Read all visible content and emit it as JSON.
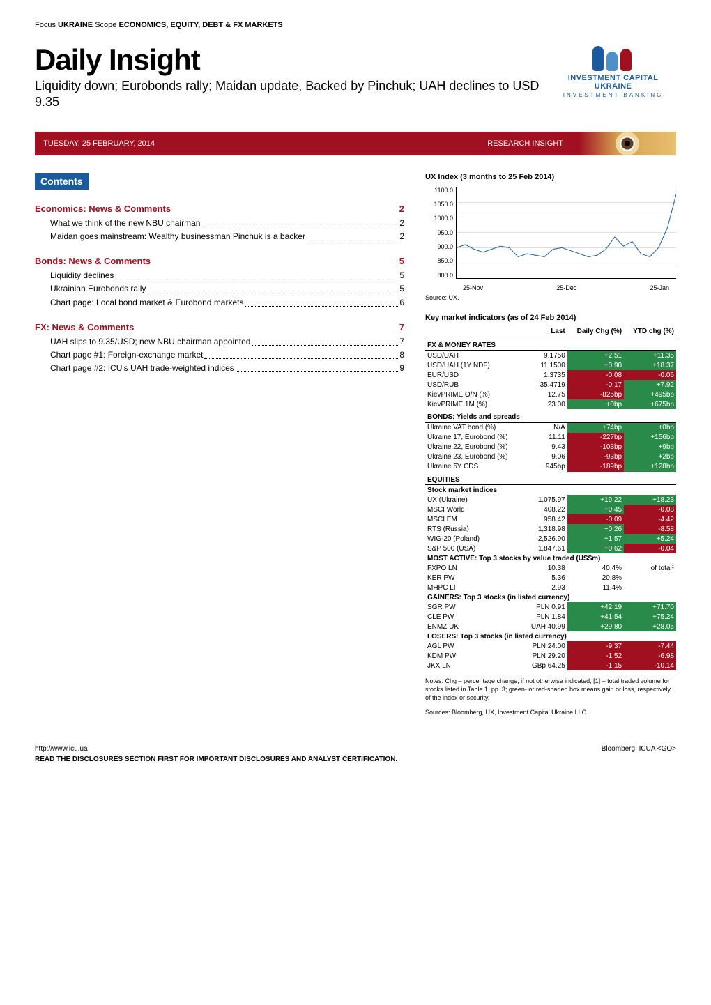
{
  "header_tag": {
    "prefix": "Focus ",
    "b1": "UKRAINE",
    "mid": "   Scope ",
    "b2": "ECONOMICS, EQUITY, DEBT & FX MARKETS"
  },
  "title": "Daily Insight",
  "subtitle": "Liquidity down; Eurobonds rally; Maidan update, Backed by Pinchuk; UAH declines to USD 9.35",
  "logo": {
    "name": "INVESTMENT CAPITAL UKRAINE",
    "sub": "INVESTMENT BANKING"
  },
  "logo_colors": [
    "#1a5a9e",
    "#5090c8",
    "#a01020"
  ],
  "date": "TUESDAY, 25 FEBRUARY, 2014",
  "research": "RESEARCH INSIGHT",
  "contents_label": "Contents",
  "toc": [
    {
      "title": "Economics: News & Comments",
      "page": "2",
      "items": [
        {
          "label": "What we think of the new NBU chairman",
          "pg": "2"
        },
        {
          "label": "Maidan goes mainstream: Wealthy businessman Pinchuk is a backer",
          "pg": "2"
        }
      ]
    },
    {
      "title": "Bonds: News & Comments",
      "page": "5",
      "items": [
        {
          "label": "Liquidity declines",
          "pg": "5"
        },
        {
          "label": "Ukrainian Eurobonds rally",
          "pg": "5"
        },
        {
          "label": "Chart page: Local bond market & Eurobond markets",
          "pg": "6"
        }
      ]
    },
    {
      "title": "FX: News & Comments",
      "page": "7",
      "items": [
        {
          "label": "UAH slips to 9.35/USD; new NBU chairman appointed",
          "pg": "7"
        },
        {
          "label": "Chart page #1: Foreign-exchange market",
          "pg": "8"
        },
        {
          "label": "Chart page #2: ICU's UAH trade-weighted indices",
          "pg": "9"
        }
      ]
    }
  ],
  "chart": {
    "title": "UX Index (3 months to 25 Feb 2014)",
    "ylim": [
      800,
      1100
    ],
    "ytick_step": 50,
    "yticks": [
      "1100.0",
      "1050.0",
      "1000.0",
      "950.0",
      "900.0",
      "850.0",
      "800.0"
    ],
    "xticks": [
      "25-Nov",
      "25-Dec",
      "25-Jan"
    ],
    "line_color": "#1a5a9e",
    "grid_color": "#dddddd",
    "source": "Source: UX.",
    "points": [
      [
        0,
        900
      ],
      [
        4,
        910
      ],
      [
        8,
        895
      ],
      [
        12,
        885
      ],
      [
        16,
        895
      ],
      [
        20,
        905
      ],
      [
        24,
        900
      ],
      [
        28,
        870
      ],
      [
        32,
        880
      ],
      [
        36,
        875
      ],
      [
        40,
        870
      ],
      [
        44,
        895
      ],
      [
        48,
        900
      ],
      [
        52,
        890
      ],
      [
        56,
        880
      ],
      [
        60,
        870
      ],
      [
        64,
        875
      ],
      [
        68,
        895
      ],
      [
        72,
        935
      ],
      [
        76,
        905
      ],
      [
        80,
        920
      ],
      [
        84,
        880
      ],
      [
        88,
        870
      ],
      [
        92,
        900
      ],
      [
        96,
        965
      ],
      [
        100,
        1075
      ]
    ]
  },
  "kmi_title": "Key market indicators (as of 24 Feb 2014)",
  "kmi_headers": [
    "",
    "Last",
    "Daily Chg (%)",
    "YTD chg (%)"
  ],
  "kmi_sections": [
    {
      "head": "FX & MONEY RATES",
      "rows": [
        {
          "n": "USD/UAH",
          "last": "9.1750",
          "d": "+2.51",
          "dc": "pos",
          "y": "+11.35",
          "yc": "pos"
        },
        {
          "n": "USD/UAH (1Y NDF)",
          "last": "11.1500",
          "d": "+0.90",
          "dc": "pos",
          "y": "+18.37",
          "yc": "pos"
        },
        {
          "n": "EUR/USD",
          "last": "1.3735",
          "d": "-0.08",
          "dc": "neg",
          "y": "-0.06",
          "yc": "neg"
        },
        {
          "n": "USD/RUB",
          "last": "35.4719",
          "d": "-0.17",
          "dc": "neg",
          "y": "+7.92",
          "yc": "pos"
        },
        {
          "n": "KievPRIME O/N (%)",
          "last": "12.75",
          "d": "-825bp",
          "dc": "neg",
          "y": "+495bp",
          "yc": "pos"
        },
        {
          "n": "KievPRIME 1M (%)",
          "last": "23.00",
          "d": "+0bp",
          "dc": "pos",
          "y": "+675bp",
          "yc": "pos"
        }
      ]
    },
    {
      "head": "BONDS: Yields and spreads",
      "rows": [
        {
          "n": "Ukraine VAT bond (%)",
          "last": "N/A",
          "d": "+74bp",
          "dc": "pos",
          "y": "+0bp",
          "yc": "pos"
        },
        {
          "n": "Ukraine 17, Eurobond (%)",
          "last": "11.11",
          "d": "-227bp",
          "dc": "neg",
          "y": "+156bp",
          "yc": "pos"
        },
        {
          "n": "Ukraine 22, Eurobond (%)",
          "last": "9.43",
          "d": "-103bp",
          "dc": "neg",
          "y": "+9bp",
          "yc": "pos"
        },
        {
          "n": "Ukraine 23, Eurobond (%)",
          "last": "9.06",
          "d": "-93bp",
          "dc": "neg",
          "y": "+2bp",
          "yc": "pos"
        },
        {
          "n": "Ukraine 5Y CDS",
          "last": "945bp",
          "d": "-189bp",
          "dc": "neg",
          "y": "+128bp",
          "yc": "pos"
        }
      ]
    },
    {
      "head": "EQUITIES",
      "sub": "Stock market indices",
      "rows": [
        {
          "n": "UX (Ukraine)",
          "last": "1,075.97",
          "d": "+19.22",
          "dc": "pos",
          "y": "+18.23",
          "yc": "pos"
        },
        {
          "n": "MSCI World",
          "last": "408.22",
          "d": "+0.45",
          "dc": "pos",
          "y": "-0.08",
          "yc": "neg"
        },
        {
          "n": "MSCI EM",
          "last": "958.42",
          "d": "-0.09",
          "dc": "neg",
          "y": "-4.42",
          "yc": "neg"
        },
        {
          "n": "RTS (Russia)",
          "last": "1,318.98",
          "d": "+0.26",
          "dc": "pos",
          "y": "-8.58",
          "yc": "neg"
        },
        {
          "n": "WIG-20 (Poland)",
          "last": "2,526.90",
          "d": "+1.57",
          "dc": "pos",
          "y": "+5.24",
          "yc": "pos"
        },
        {
          "n": "S&P 500 (USA)",
          "last": "1,847.61",
          "d": "+0.62",
          "dc": "pos",
          "y": "-0.04",
          "yc": "neg"
        }
      ]
    },
    {
      "sub": "MOST ACTIVE: Top 3 stocks by value traded (US$m)",
      "rows": [
        {
          "n": "FXPO LN",
          "last": "10.38",
          "d": "40.4%",
          "dc": "plain",
          "y": "of total¹",
          "yc": "plain"
        },
        {
          "n": "KER PW",
          "last": "5.36",
          "d": "20.8%",
          "dc": "plain",
          "y": "",
          "yc": "plain"
        },
        {
          "n": "MHPC LI",
          "last": "2.93",
          "d": "11.4%",
          "dc": "plain",
          "y": "",
          "yc": "plain"
        }
      ]
    },
    {
      "sub": "GAINERS: Top 3 stocks (in listed currency)",
      "rows": [
        {
          "n": "SGR PW",
          "last": "PLN 0.91",
          "d": "+42.19",
          "dc": "pos",
          "y": "+71.70",
          "yc": "pos"
        },
        {
          "n": "CLE PW",
          "last": "PLN 1.84",
          "d": "+41.54",
          "dc": "pos",
          "y": "+75.24",
          "yc": "pos"
        },
        {
          "n": "ENMZ UK",
          "last": "UAH 40.99",
          "d": "+29.80",
          "dc": "pos",
          "y": "+28.05",
          "yc": "pos"
        }
      ]
    },
    {
      "sub": "LOSERS: Top 3 stocks (in listed currency)",
      "rows": [
        {
          "n": "AGL PW",
          "last": "PLN 24.00",
          "d": "-9.37",
          "dc": "neg",
          "y": "-7.44",
          "yc": "neg"
        },
        {
          "n": "KDM PW",
          "last": "PLN 29.20",
          "d": "-1.52",
          "dc": "neg",
          "y": "-6.98",
          "yc": "neg"
        },
        {
          "n": "JKX LN",
          "last": "GBp 64.25",
          "d": "-1.15",
          "dc": "neg",
          "y": "-10.14",
          "yc": "neg"
        }
      ]
    }
  ],
  "notes": "Notes: Chg – percentage change, if not otherwise indicated; [1] – total traded volume for stocks listed in Table 1,  pp. 3; green- or red-shaded box means gain or loss, respectively, of the index or security.",
  "sources": "Sources: Bloomberg, UX, Investment Capital Ukraine LLC.",
  "footer": {
    "url": "http://www.icu.ua",
    "bloomberg": "Bloomberg: ICUA <GO>",
    "disclaimer": "READ THE DISCLOSURES SECTION FIRST FOR IMPORTANT DISCLOSURES AND ANALYST CERTIFICATION."
  }
}
